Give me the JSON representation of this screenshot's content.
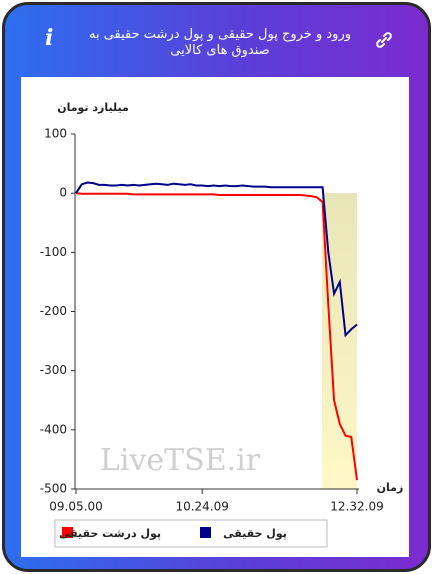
{
  "chart_data": {
    "type": "line",
    "title": "ورود و خروج پول حقیقی و پول درشت حقیقی به صندوق های کالایی",
    "y_label": "میلیارد تومان",
    "x_label": "زمان",
    "watermark": "LiveTSE.ir",
    "categories": [
      "09.05.00",
      null,
      null,
      null,
      null,
      null,
      null,
      null,
      null,
      null,
      null,
      null,
      null,
      null,
      null,
      null,
      null,
      null,
      null,
      null,
      null,
      null,
      "10.24.09",
      null,
      null,
      null,
      null,
      null,
      null,
      null,
      null,
      null,
      null,
      null,
      null,
      null,
      null,
      null,
      null,
      null,
      null,
      null,
      null,
      null,
      null,
      null,
      null,
      null,
      null,
      "12.32.09"
    ],
    "series": [
      {
        "name": "پول حقیقی",
        "color": "#00008b",
        "values": [
          0,
          15,
          18,
          17,
          14,
          14,
          13,
          13,
          14,
          13,
          14,
          13,
          14,
          15,
          16,
          15,
          14,
          16,
          15,
          14,
          15,
          13,
          13,
          12,
          13,
          12,
          13,
          12,
          12,
          13,
          12,
          11,
          11,
          11,
          10,
          10,
          10,
          10,
          10,
          10,
          10,
          10,
          10,
          10,
          -100,
          -170,
          -150,
          -240,
          -230,
          -222
        ]
      },
      {
        "name": "پول درشت حقیقی",
        "color": "#ff0000",
        "values": [
          0,
          -1,
          -1,
          -1,
          -1,
          -1,
          -1,
          -1,
          -1,
          -1,
          -2,
          -2,
          -2,
          -2,
          -2,
          -2,
          -2,
          -2,
          -2,
          -2,
          -2,
          -2,
          -2,
          -2,
          -2,
          -3,
          -3,
          -3,
          -3,
          -3,
          -3,
          -3,
          -3,
          -3,
          -3,
          -3,
          -3,
          -3,
          -3,
          -3,
          -4,
          -5,
          -7,
          -15,
          -190,
          -350,
          -390,
          -410,
          -412,
          -485
        ]
      }
    ],
    "ylim": [
      -500,
      100
    ],
    "yticks": [
      100,
      0,
      -100,
      -200,
      -300,
      -400,
      -500
    ]
  }
}
